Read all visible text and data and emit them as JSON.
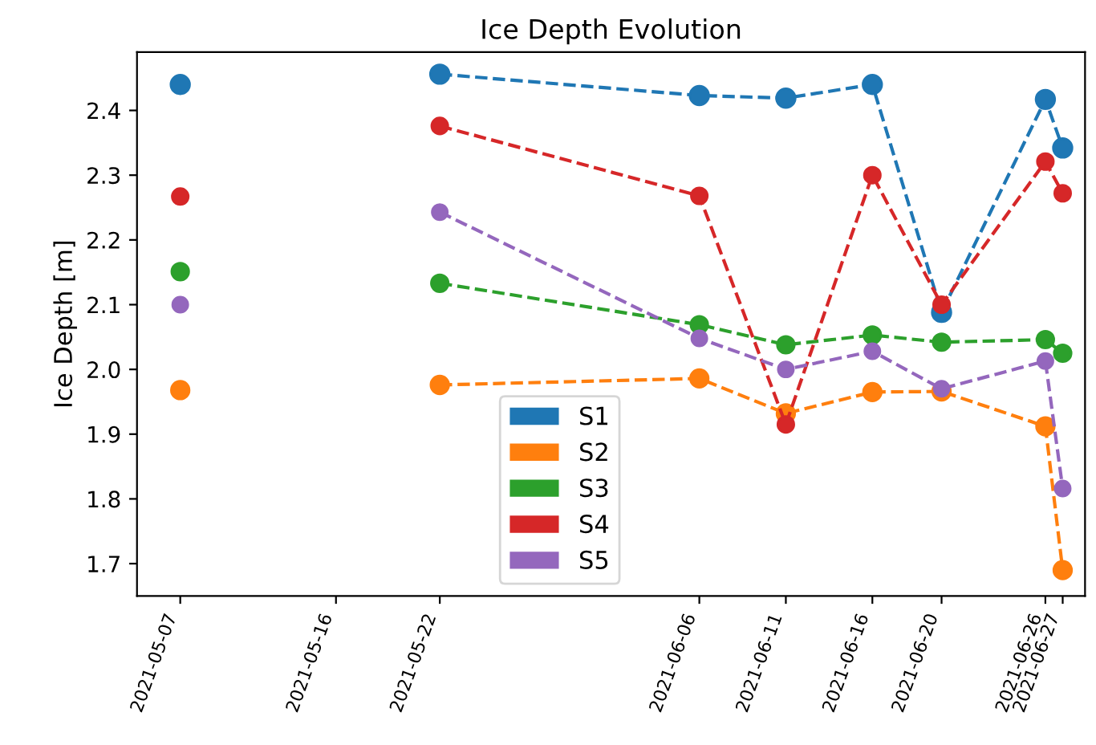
{
  "chart_data": {
    "type": "line",
    "title": "Ice Depth Evolution",
    "ylabel": "Ice Depth [m]",
    "x": [
      "2021-05-07",
      "2021-05-16",
      "2021-05-22",
      "2021-06-06",
      "2021-06-11",
      "2021-06-16",
      "2021-06-20",
      "2021-06-26",
      "2021-06-27"
    ],
    "series": [
      {
        "name": "S1",
        "color": "#1f77b4",
        "values": [
          2.44,
          null,
          2.456,
          2.423,
          2.419,
          2.44,
          2.088,
          2.417,
          2.342
        ]
      },
      {
        "name": "S2",
        "color": "#ff7f0e",
        "values": [
          1.968,
          null,
          1.976,
          1.986,
          1.932,
          1.965,
          1.966,
          1.912,
          1.69
        ]
      },
      {
        "name": "S3",
        "color": "#2ca02c",
        "values": [
          2.151,
          null,
          2.133,
          2.069,
          2.038,
          2.053,
          2.042,
          2.046,
          2.025
        ]
      },
      {
        "name": "S4",
        "color": "#d62728",
        "values": [
          2.267,
          null,
          2.376,
          2.268,
          1.915,
          2.3,
          2.1,
          2.321,
          2.272
        ]
      },
      {
        "name": "S5",
        "color": "#9467bd",
        "values": [
          2.1,
          null,
          2.243,
          2.048,
          2.0,
          2.028,
          1.97,
          2.013,
          1.816
        ]
      }
    ],
    "xlim": [
      "2021-05-04T12:00",
      "2021-06-28T07:00"
    ],
    "xticks": [
      "2021-05-07",
      "2021-05-16",
      "2021-05-22",
      "2021-06-06",
      "2021-06-11",
      "2021-06-16",
      "2021-06-20",
      "2021-06-26",
      "2021-06-27"
    ],
    "ylim": [
      1.65,
      2.49
    ],
    "yticks": [
      1.7,
      1.8,
      1.9,
      {
        "value": 2.0,
        "label": "2.0"
      },
      2.1,
      2.2,
      2.3,
      2.4
    ],
    "grid": false,
    "legend": "bottom",
    "marker": "circle",
    "line_style": "dashed"
  }
}
